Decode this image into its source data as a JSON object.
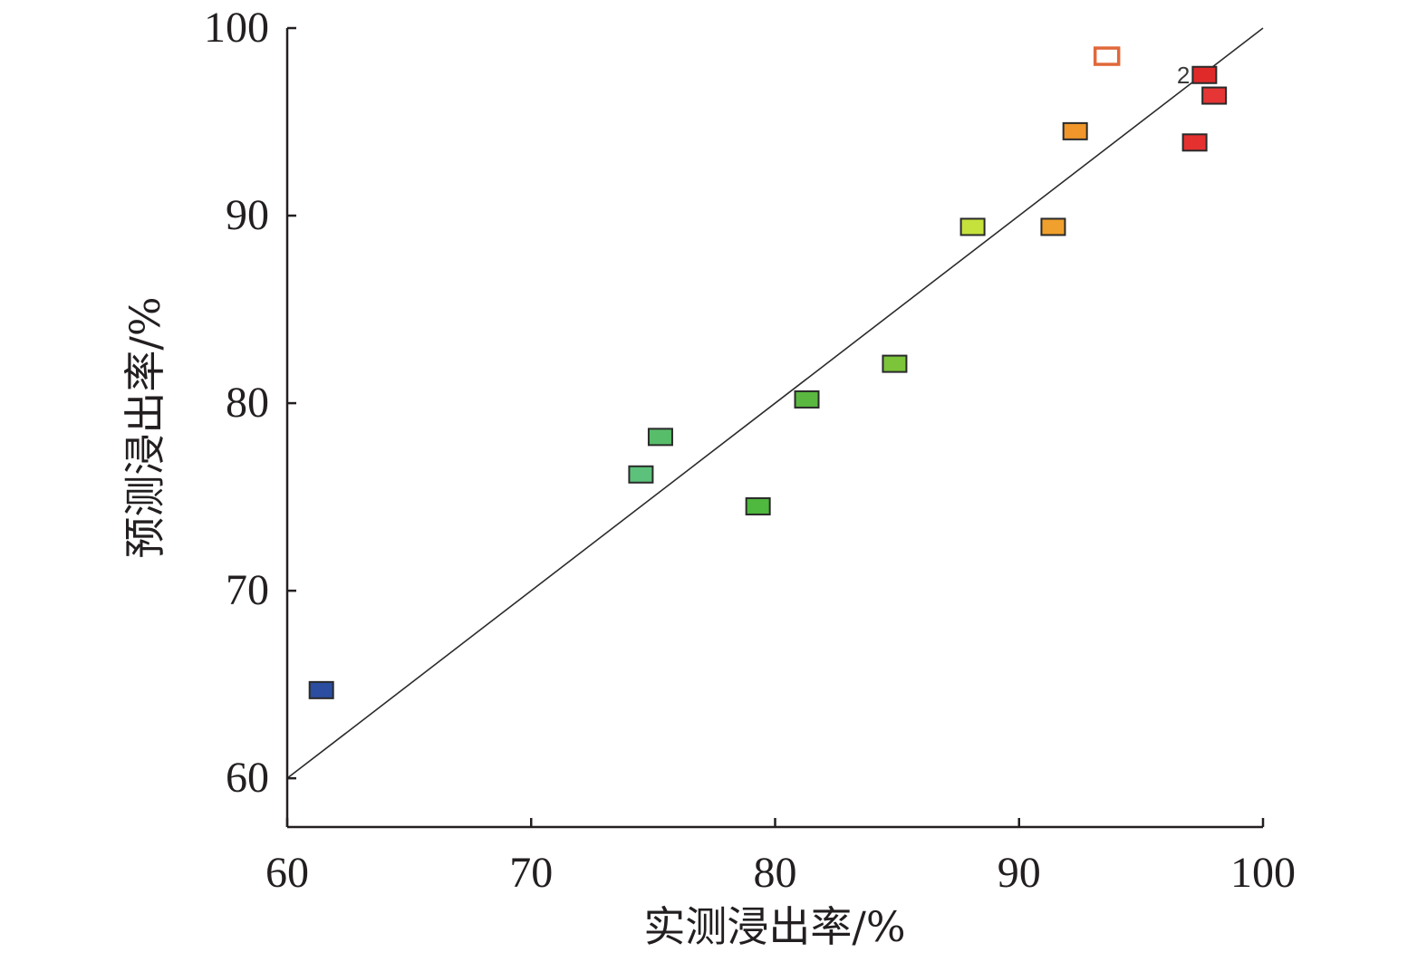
{
  "chart_data": {
    "type": "scatter",
    "xlabel": "实测浸出率/%",
    "ylabel": "预测浸出率/%",
    "xlim": [
      60,
      100
    ],
    "ylim": [
      57.4,
      100
    ],
    "xticks": [
      "60",
      "70",
      "80",
      "90",
      "100"
    ],
    "yticks": [
      "60",
      "70",
      "80",
      "90",
      "100"
    ],
    "grid": false,
    "reference_line": {
      "from": [
        60,
        60
      ],
      "to": [
        100,
        100
      ]
    },
    "points": [
      {
        "x": 61.4,
        "y": 64.7,
        "color": "#2b4ea0"
      },
      {
        "x": 74.5,
        "y": 76.2,
        "color": "#5cc17a"
      },
      {
        "x": 75.3,
        "y": 78.2,
        "color": "#58bd6a"
      },
      {
        "x": 79.3,
        "y": 74.5,
        "color": "#4fb83e"
      },
      {
        "x": 81.3,
        "y": 80.2,
        "color": "#5ab840"
      },
      {
        "x": 84.9,
        "y": 82.1,
        "color": "#7cc43a"
      },
      {
        "x": 88.1,
        "y": 89.4,
        "color": "#c5e23c"
      },
      {
        "x": 91.4,
        "y": 89.4,
        "color": "#f0a02c"
      },
      {
        "x": 92.3,
        "y": 94.5,
        "color": "#f0962a"
      },
      {
        "x": 93.6,
        "y": 98.5,
        "color": "#ffffff",
        "edge": "#e0683a"
      },
      {
        "x": 97.2,
        "y": 93.9,
        "color": "#e53030"
      },
      {
        "x": 97.6,
        "y": 97.5,
        "color": "#e02a2a",
        "label": "2"
      },
      {
        "x": 98.0,
        "y": 96.4,
        "color": "#e53535"
      }
    ]
  }
}
